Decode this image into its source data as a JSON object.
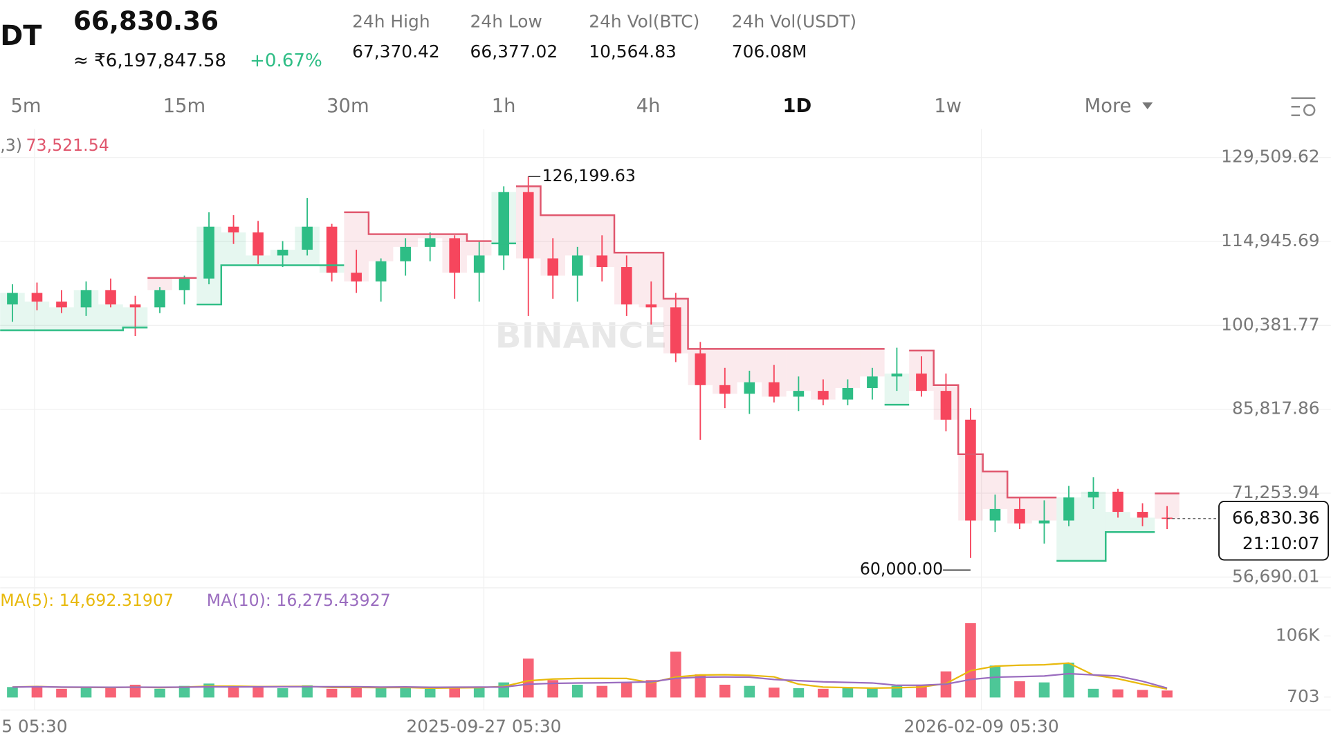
{
  "header": {
    "symbol": "DT",
    "price": "66,830.36",
    "fiat": "≈ ₹6,197,847.58",
    "change": "+0.67%",
    "stats": [
      {
        "label": "24h High",
        "value": "67,370.42"
      },
      {
        "label": "24h Low",
        "value": "66,377.02"
      },
      {
        "label": "24h Vol(BTC)",
        "value": "10,564.83"
      },
      {
        "label": "24h Vol(USDT)",
        "value": "706.08M"
      }
    ]
  },
  "tabs": [
    "5m",
    "15m",
    "30m",
    "1h",
    "4h",
    "1D",
    "1w",
    "More"
  ],
  "active_tab": "1D",
  "watermark": "BINANCE",
  "chart_data": [
    {
      "type": "candlestick",
      "legend": ",3)",
      "legend_value": "73,521.54",
      "up_color": "#2ebd85",
      "down_color": "#f6465d",
      "categories": [
        null,
        null,
        null,
        null,
        null,
        null,
        null,
        null,
        null,
        null,
        null,
        null,
        null,
        null,
        null,
        null,
        null,
        null,
        null,
        null,
        null,
        null,
        null,
        null,
        null,
        null,
        null,
        null,
        null,
        null,
        null,
        null,
        null,
        null,
        null,
        null,
        null,
        null,
        null,
        null,
        null,
        null,
        null,
        null,
        null,
        null,
        null,
        null
      ],
      "open": [
        104000,
        106000,
        104500,
        103500,
        106500,
        104000,
        103500,
        106500,
        108500,
        117500,
        116500,
        112500,
        113500,
        117500,
        109500,
        108000,
        111500,
        114000,
        115500,
        109500,
        112500,
        123500,
        112000,
        109000,
        112500,
        110500,
        104000,
        103500,
        95500,
        90000,
        88500,
        90500,
        88000,
        89000,
        87500,
        89500,
        91500,
        92000,
        89000,
        84000,
        66500,
        68500,
        66000,
        66500,
        70500,
        71500,
        68000,
        67000
      ],
      "high": [
        107500,
        107800,
        106500,
        108000,
        108500,
        105500,
        107000,
        109000,
        120000,
        119500,
        118500,
        115000,
        122500,
        118000,
        113500,
        112000,
        115500,
        116500,
        116000,
        115000,
        124500,
        126199.63,
        115500,
        114000,
        116000,
        112500,
        108000,
        106000,
        97500,
        93000,
        92500,
        93500,
        91500,
        91000,
        91000,
        93000,
        96500,
        95000,
        92000,
        86000,
        71000,
        70500,
        70000,
        72500,
        74000,
        72000,
        69500,
        69000
      ],
      "low": [
        101000,
        103000,
        102500,
        102000,
        103500,
        98500,
        102500,
        104000,
        107500,
        114500,
        111000,
        110500,
        112500,
        108000,
        106000,
        104500,
        109000,
        111500,
        105000,
        104500,
        110000,
        102000,
        105000,
        104500,
        108000,
        102000,
        100500,
        94000,
        80500,
        86000,
        85000,
        87000,
        85500,
        86500,
        86500,
        87500,
        89000,
        88000,
        82000,
        60000,
        64500,
        65000,
        62500,
        65500,
        68500,
        67000,
        65500,
        65000
      ],
      "close": [
        106000,
        104500,
        103500,
        106500,
        104000,
        103500,
        106500,
        108500,
        117500,
        116500,
        112500,
        113500,
        117500,
        109500,
        108000,
        111500,
        114000,
        115500,
        109500,
        112500,
        123500,
        112000,
        109000,
        112500,
        110500,
        104000,
        103500,
        95500,
        90000,
        88500,
        90500,
        88000,
        89000,
        87500,
        89500,
        91500,
        92000,
        89000,
        84000,
        66500,
        68500,
        66000,
        66500,
        70500,
        71500,
        68000,
        67000,
        66830.36
      ],
      "series": [
        {
          "color": "#2ebd85",
          "values": [
            99500,
            99500,
            99500,
            99500,
            99500,
            100000,
            null,
            null,
            104000,
            110800,
            110800,
            110800,
            110800,
            110800,
            null,
            null,
            null,
            null,
            null,
            null,
            114600,
            null,
            null,
            null,
            null,
            null,
            null,
            null,
            null,
            null,
            null,
            null,
            null,
            null,
            null,
            null,
            86600,
            null,
            null,
            null,
            null,
            null,
            null,
            59500,
            59500,
            64500,
            64500,
            null
          ]
        },
        {
          "color": "#e0566d",
          "values": [
            null,
            null,
            null,
            null,
            null,
            null,
            108600,
            108600,
            null,
            null,
            null,
            null,
            null,
            null,
            120000,
            116200,
            116200,
            116200,
            116200,
            115000,
            null,
            124500,
            119500,
            119500,
            119500,
            113000,
            113000,
            105000,
            96300,
            96300,
            96300,
            96300,
            96300,
            96300,
            96300,
            96300,
            null,
            96000,
            90000,
            78000,
            75000,
            70500,
            70500,
            null,
            null,
            null,
            null,
            71200
          ]
        }
      ],
      "max_label": "126,199.63",
      "min_label": "60,000.00",
      "last_price_label": "66,830.36",
      "countdown": "21:10:07",
      "xlim": [
        -0.5,
        47.5
      ],
      "xticks": [
        {
          "value": 0.9,
          "label": "5 05:30"
        },
        {
          "value": 19.19,
          "label": "2025-09-27 05:30"
        },
        {
          "value": 39.44,
          "label": "2026-02-09 05:30"
        }
      ],
      "ylim": [
        54823,
        134439
      ],
      "yticks": [
        {
          "value": 129509.62,
          "label": "129,509.62"
        },
        {
          "value": 114945.69,
          "label": "114,945.69"
        },
        {
          "value": 100381.77,
          "label": "100,381.77"
        },
        {
          "value": 85817.86,
          "label": "85,817.86"
        },
        {
          "value": 71253.94,
          "label": "71,253.94"
        },
        {
          "value": 56690.01,
          "label": "56,690.01"
        }
      ]
    },
    {
      "type": "bar",
      "values": [
        18000,
        20000,
        15000,
        17000,
        16000,
        22000,
        15000,
        20000,
        24000,
        17000,
        18000,
        16000,
        21000,
        15000,
        17000,
        16000,
        18000,
        15000,
        17000,
        19000,
        26000,
        67000,
        30000,
        22000,
        20000,
        25000,
        30000,
        79000,
        40000,
        22000,
        20000,
        17000,
        16000,
        15000,
        17000,
        16000,
        20000,
        22000,
        45000,
        128000,
        55000,
        28000,
        26000,
        60000,
        15000,
        14000,
        13000,
        12000
      ],
      "series": [
        {
          "legend_text": "MA(5): 14,692.31907",
          "color": "#e8b90c",
          "values": [
            18000,
            19000,
            17700,
            17500,
            17200,
            18000,
            17000,
            18000,
            19400,
            19600,
            18800,
            19000,
            19200,
            17400,
            17400,
            17000,
            17400,
            16200,
            16600,
            17000,
            19000,
            28800,
            31800,
            32800,
            33000,
            32800,
            25400,
            35200,
            38800,
            39200,
            38200,
            35600,
            23000,
            18000,
            17000,
            16200,
            16800,
            18000,
            24000,
            46200,
            54000,
            55600,
            56400,
            59400,
            38800,
            32200,
            23000,
            14692.31907
          ]
        },
        {
          "legend_text": "MA(10): 16,275.43927",
          "color": "#9a6cbf",
          "values": [
            18000,
            18500,
            18000,
            17800,
            17600,
            17800,
            17600,
            17800,
            18400,
            18300,
            18400,
            18500,
            18600,
            18500,
            18500,
            18000,
            18200,
            17600,
            17800,
            18000,
            18000,
            23000,
            24300,
            25000,
            25300,
            26000,
            27000,
            33000,
            35000,
            35300,
            35000,
            31000,
            29000,
            27000,
            26000,
            25000,
            21000,
            21000,
            23000,
            31000,
            35000,
            36000,
            37000,
            41000,
            39000,
            37000,
            28000,
            16275.43927
          ]
        }
      ],
      "ylim": [
        -18577,
        131200
      ],
      "yticks": [
        {
          "value": 106000,
          "label": "106K"
        },
        703
      ]
    }
  ]
}
